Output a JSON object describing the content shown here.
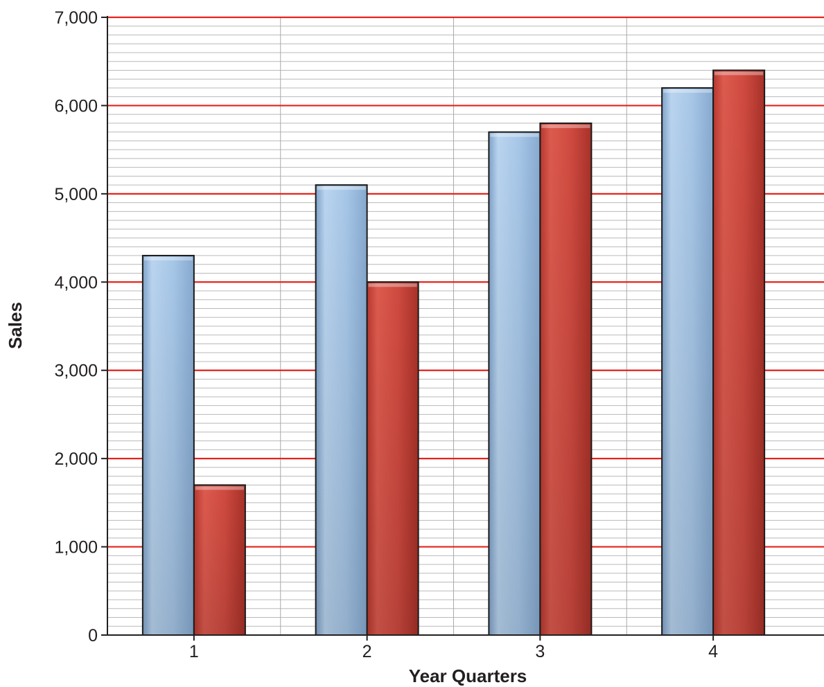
{
  "chart_data": {
    "type": "bar",
    "title": "",
    "xlabel": "Year Quarters",
    "ylabel": "Sales",
    "categories": [
      "1",
      "2",
      "3",
      "4"
    ],
    "series": [
      {
        "values": [
          4300,
          5100,
          5700,
          6200
        ],
        "color": "#a7c6e7"
      },
      {
        "values": [
          1700,
          4000,
          5800,
          6400
        ],
        "color": "#cf4a40"
      }
    ],
    "ylim": [
      0,
      7000
    ],
    "yticks": [
      0,
      1000,
      2000,
      3000,
      4000,
      5000,
      6000,
      7000
    ],
    "ytick_labels": [
      "0",
      "1,000",
      "2,000",
      "3,000",
      "4,000",
      "5,000",
      "6,000",
      "7,000"
    ],
    "grid": {
      "major_horizontal": true,
      "minor_horizontal": true,
      "vertical_separators": true,
      "major_color": "#e3241b",
      "minor_color": "#b9b9b9"
    },
    "legend": "none"
  }
}
